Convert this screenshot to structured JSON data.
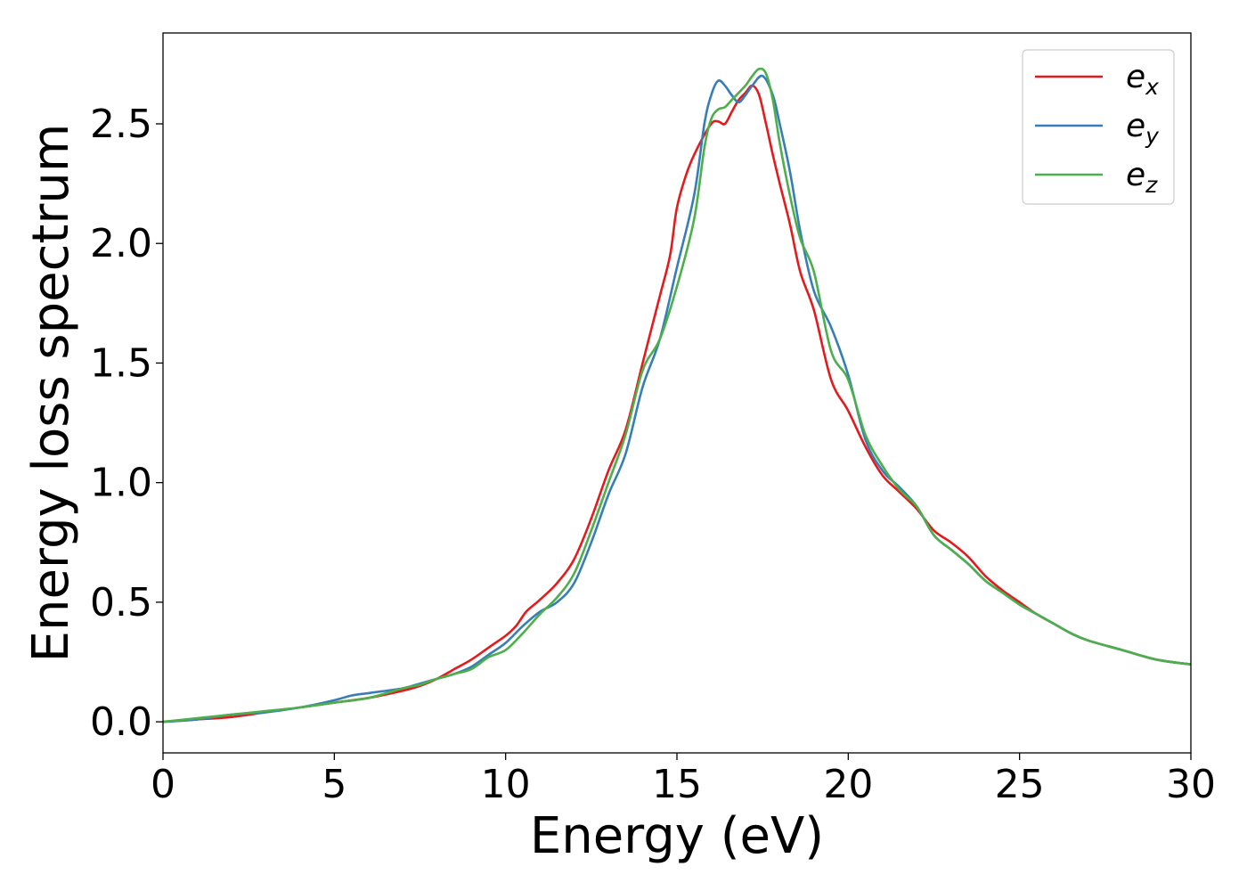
{
  "chart_data": {
    "type": "line",
    "title": "",
    "xlabel": "Energy (eV)",
    "ylabel": "Energy loss spectrum",
    "xlim": [
      0,
      30
    ],
    "ylim": [
      -0.13,
      2.88
    ],
    "xticks": [
      0,
      5,
      10,
      15,
      20,
      25,
      30
    ],
    "xtick_labels": [
      "0",
      "5",
      "10",
      "15",
      "20",
      "25",
      "30"
    ],
    "yticks": [
      0.0,
      0.5,
      1.0,
      1.5,
      2.0,
      2.5
    ],
    "ytick_labels": [
      "0.0",
      "0.5",
      "1.0",
      "1.5",
      "2.0",
      "2.5"
    ],
    "grid": false,
    "legend_position": "top-right",
    "series": [
      {
        "name": "e_x",
        "legend_base": "e",
        "legend_sub": "x",
        "color": "#e41a1c",
        "x": [
          0,
          1,
          2,
          3,
          4,
          5,
          6,
          7,
          7.5,
          8,
          8.5,
          9,
          9.5,
          10,
          10.3,
          10.6,
          11,
          11.5,
          12,
          12.5,
          13,
          13.5,
          14,
          14.5,
          14.8,
          15,
          15.3,
          15.6,
          16,
          16.2,
          16.4,
          16.6,
          16.8,
          17,
          17.2,
          17.4,
          17.6,
          17.8,
          18,
          18.3,
          18.6,
          19,
          19.5,
          20,
          20.5,
          21,
          21.5,
          22,
          22.5,
          23,
          23.5,
          24,
          24.5,
          25,
          25.5,
          26,
          26.5,
          27,
          28,
          29,
          30
        ],
        "y": [
          0.0,
          0.01,
          0.02,
          0.04,
          0.06,
          0.08,
          0.1,
          0.13,
          0.15,
          0.18,
          0.22,
          0.26,
          0.31,
          0.36,
          0.4,
          0.46,
          0.51,
          0.58,
          0.68,
          0.85,
          1.05,
          1.22,
          1.5,
          1.78,
          1.95,
          2.15,
          2.3,
          2.4,
          2.5,
          2.51,
          2.5,
          2.55,
          2.6,
          2.63,
          2.66,
          2.62,
          2.5,
          2.37,
          2.25,
          2.08,
          1.88,
          1.72,
          1.43,
          1.3,
          1.15,
          1.03,
          0.96,
          0.89,
          0.8,
          0.75,
          0.69,
          0.61,
          0.55,
          0.5,
          0.45,
          0.41,
          0.37,
          0.34,
          0.3,
          0.26,
          0.24
        ]
      },
      {
        "name": "e_y",
        "legend_base": "e",
        "legend_sub": "y",
        "color": "#377eb8",
        "x": [
          0,
          1,
          2,
          3,
          4,
          5,
          5.5,
          6,
          7,
          7.5,
          8,
          8.5,
          9,
          9.5,
          10,
          10.5,
          11,
          11.5,
          12,
          12.5,
          13,
          13.5,
          14,
          14.5,
          15,
          15.5,
          15.8,
          16,
          16.2,
          16.4,
          16.6,
          16.8,
          17,
          17.2,
          17.5,
          17.8,
          18,
          18.3,
          18.6,
          19,
          19.5,
          20,
          20.5,
          21,
          21.5,
          22,
          22.5,
          23,
          23.5,
          24,
          24.5,
          25,
          25.5,
          26,
          26.5,
          27,
          28,
          29,
          30
        ],
        "y": [
          0.0,
          0.01,
          0.03,
          0.04,
          0.06,
          0.09,
          0.11,
          0.12,
          0.14,
          0.16,
          0.18,
          0.2,
          0.23,
          0.28,
          0.33,
          0.4,
          0.46,
          0.5,
          0.58,
          0.75,
          0.95,
          1.12,
          1.4,
          1.6,
          1.9,
          2.2,
          2.5,
          2.62,
          2.68,
          2.66,
          2.62,
          2.59,
          2.62,
          2.66,
          2.7,
          2.62,
          2.5,
          2.3,
          2.05,
          1.8,
          1.65,
          1.45,
          1.18,
          1.05,
          0.98,
          0.9,
          0.78,
          0.72,
          0.66,
          0.59,
          0.54,
          0.49,
          0.45,
          0.41,
          0.37,
          0.34,
          0.3,
          0.26,
          0.24
        ]
      },
      {
        "name": "e_z",
        "legend_base": "e",
        "legend_sub": "z",
        "color": "#4daf4a",
        "x": [
          0,
          1,
          2,
          3,
          4,
          5,
          6,
          7,
          7.5,
          8,
          8.5,
          9,
          9.5,
          10,
          10.5,
          11,
          11.5,
          12,
          12.5,
          13,
          13.5,
          14,
          14.5,
          15,
          15.5,
          15.8,
          16,
          16.2,
          16.4,
          16.6,
          16.8,
          17,
          17.2,
          17.4,
          17.6,
          17.8,
          18,
          18.3,
          18.6,
          19,
          19.5,
          20,
          20.5,
          21,
          21.5,
          22,
          22.5,
          23,
          23.5,
          24,
          24.5,
          25,
          25.5,
          26,
          26.5,
          27,
          28,
          29,
          30
        ],
        "y": [
          0.0,
          0.015,
          0.03,
          0.045,
          0.06,
          0.08,
          0.1,
          0.14,
          0.155,
          0.18,
          0.2,
          0.22,
          0.27,
          0.3,
          0.37,
          0.45,
          0.52,
          0.62,
          0.8,
          1.0,
          1.2,
          1.47,
          1.6,
          1.82,
          2.1,
          2.4,
          2.52,
          2.56,
          2.57,
          2.6,
          2.63,
          2.66,
          2.7,
          2.73,
          2.71,
          2.6,
          2.42,
          2.2,
          2.02,
          1.88,
          1.55,
          1.43,
          1.2,
          1.07,
          0.97,
          0.9,
          0.78,
          0.72,
          0.66,
          0.59,
          0.54,
          0.49,
          0.45,
          0.41,
          0.37,
          0.34,
          0.3,
          0.26,
          0.24
        ]
      }
    ]
  }
}
